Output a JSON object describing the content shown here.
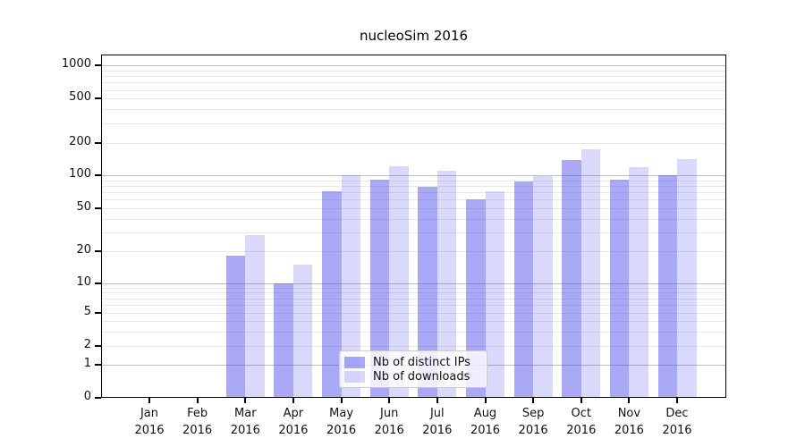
{
  "chart_data": {
    "type": "bar",
    "title": "nucleoSim 2016",
    "year_label": "2016",
    "months": [
      "Jan",
      "Feb",
      "Mar",
      "Apr",
      "May",
      "Jun",
      "Jul",
      "Aug",
      "Sep",
      "Oct",
      "Nov",
      "Dec"
    ],
    "series": [
      {
        "name": "Nb of distinct IPs",
        "color": "#4040eb",
        "alpha": 0.45,
        "values": [
          0,
          0,
          18,
          10,
          72,
          92,
          78,
          60,
          88,
          140,
          92,
          100
        ]
      },
      {
        "name": "Nb of downloads",
        "color": "#4040eb",
        "alpha": 0.2,
        "values": [
          0,
          0,
          28,
          15,
          100,
          121,
          110,
          72,
          98,
          175,
          120,
          142
        ]
      }
    ],
    "xlabel": "",
    "ylabel": "",
    "yscale": "symlog",
    "ylim": [
      0,
      1250
    ],
    "y_ticks": [
      0,
      1,
      2,
      5,
      10,
      20,
      50,
      100,
      200,
      500,
      1000
    ],
    "grid": true,
    "legend_position": "lower center",
    "colors": {
      "background": "#ffffff",
      "spine": "#000000",
      "grid_major": "#bdbdbd",
      "grid_minor": "#e8e8e8",
      "bar_dark_apparent": "#a9a9f5",
      "bar_light_apparent": "#d9d9fa"
    },
    "grid_minor_values": [
      2,
      3,
      4,
      5,
      6,
      7,
      8,
      9,
      20,
      30,
      40,
      50,
      60,
      70,
      80,
      90,
      200,
      300,
      400,
      500,
      600,
      700,
      800,
      900
    ],
    "grid_major_values": [
      1,
      10,
      100,
      1000
    ]
  }
}
